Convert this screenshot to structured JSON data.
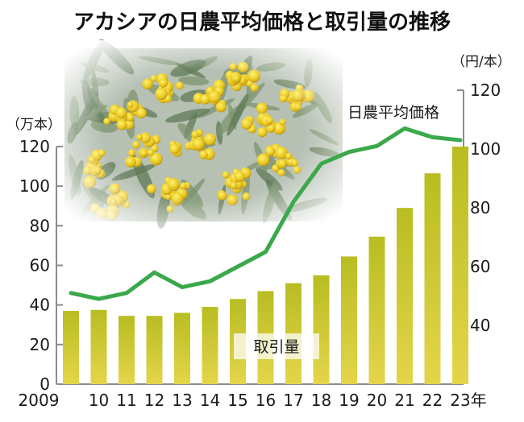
{
  "chart_data": {
    "type": "bar+line",
    "title": "アカシアの日農平均価格と取引量の推移",
    "categories": [
      "2009",
      "10",
      "11",
      "12",
      "13",
      "14",
      "15",
      "16",
      "17",
      "18",
      "19",
      "20",
      "21",
      "22",
      "23年"
    ],
    "series": [
      {
        "name": "取引量",
        "type": "bar",
        "axis": "left",
        "values": [
          37,
          37.5,
          34.5,
          34.5,
          36,
          39,
          43,
          47,
          51,
          55,
          64.5,
          74.5,
          89,
          106.5,
          120
        ]
      },
      {
        "name": "日農平均価格",
        "type": "line",
        "axis": "right",
        "values": [
          51,
          49,
          51,
          58,
          53,
          55,
          60,
          65,
          82,
          95,
          99,
          101,
          107,
          104,
          103
        ]
      }
    ],
    "left_axis": {
      "unit": "（万本）",
      "ticks": [
        "0",
        "20",
        "40",
        "60",
        "80",
        "100",
        "120"
      ],
      "ylim": [
        0,
        120
      ]
    },
    "right_axis": {
      "unit": "（円/本）",
      "ticks": [
        "40",
        "60",
        "80",
        "100",
        "120"
      ],
      "ylim": [
        20,
        120
      ]
    },
    "grid": false,
    "colors": {
      "bar": "#c7c22a",
      "line": "#3aa84b",
      "axis": "#8c8c8c"
    },
    "decoration": "mimosa-flower-photo"
  }
}
